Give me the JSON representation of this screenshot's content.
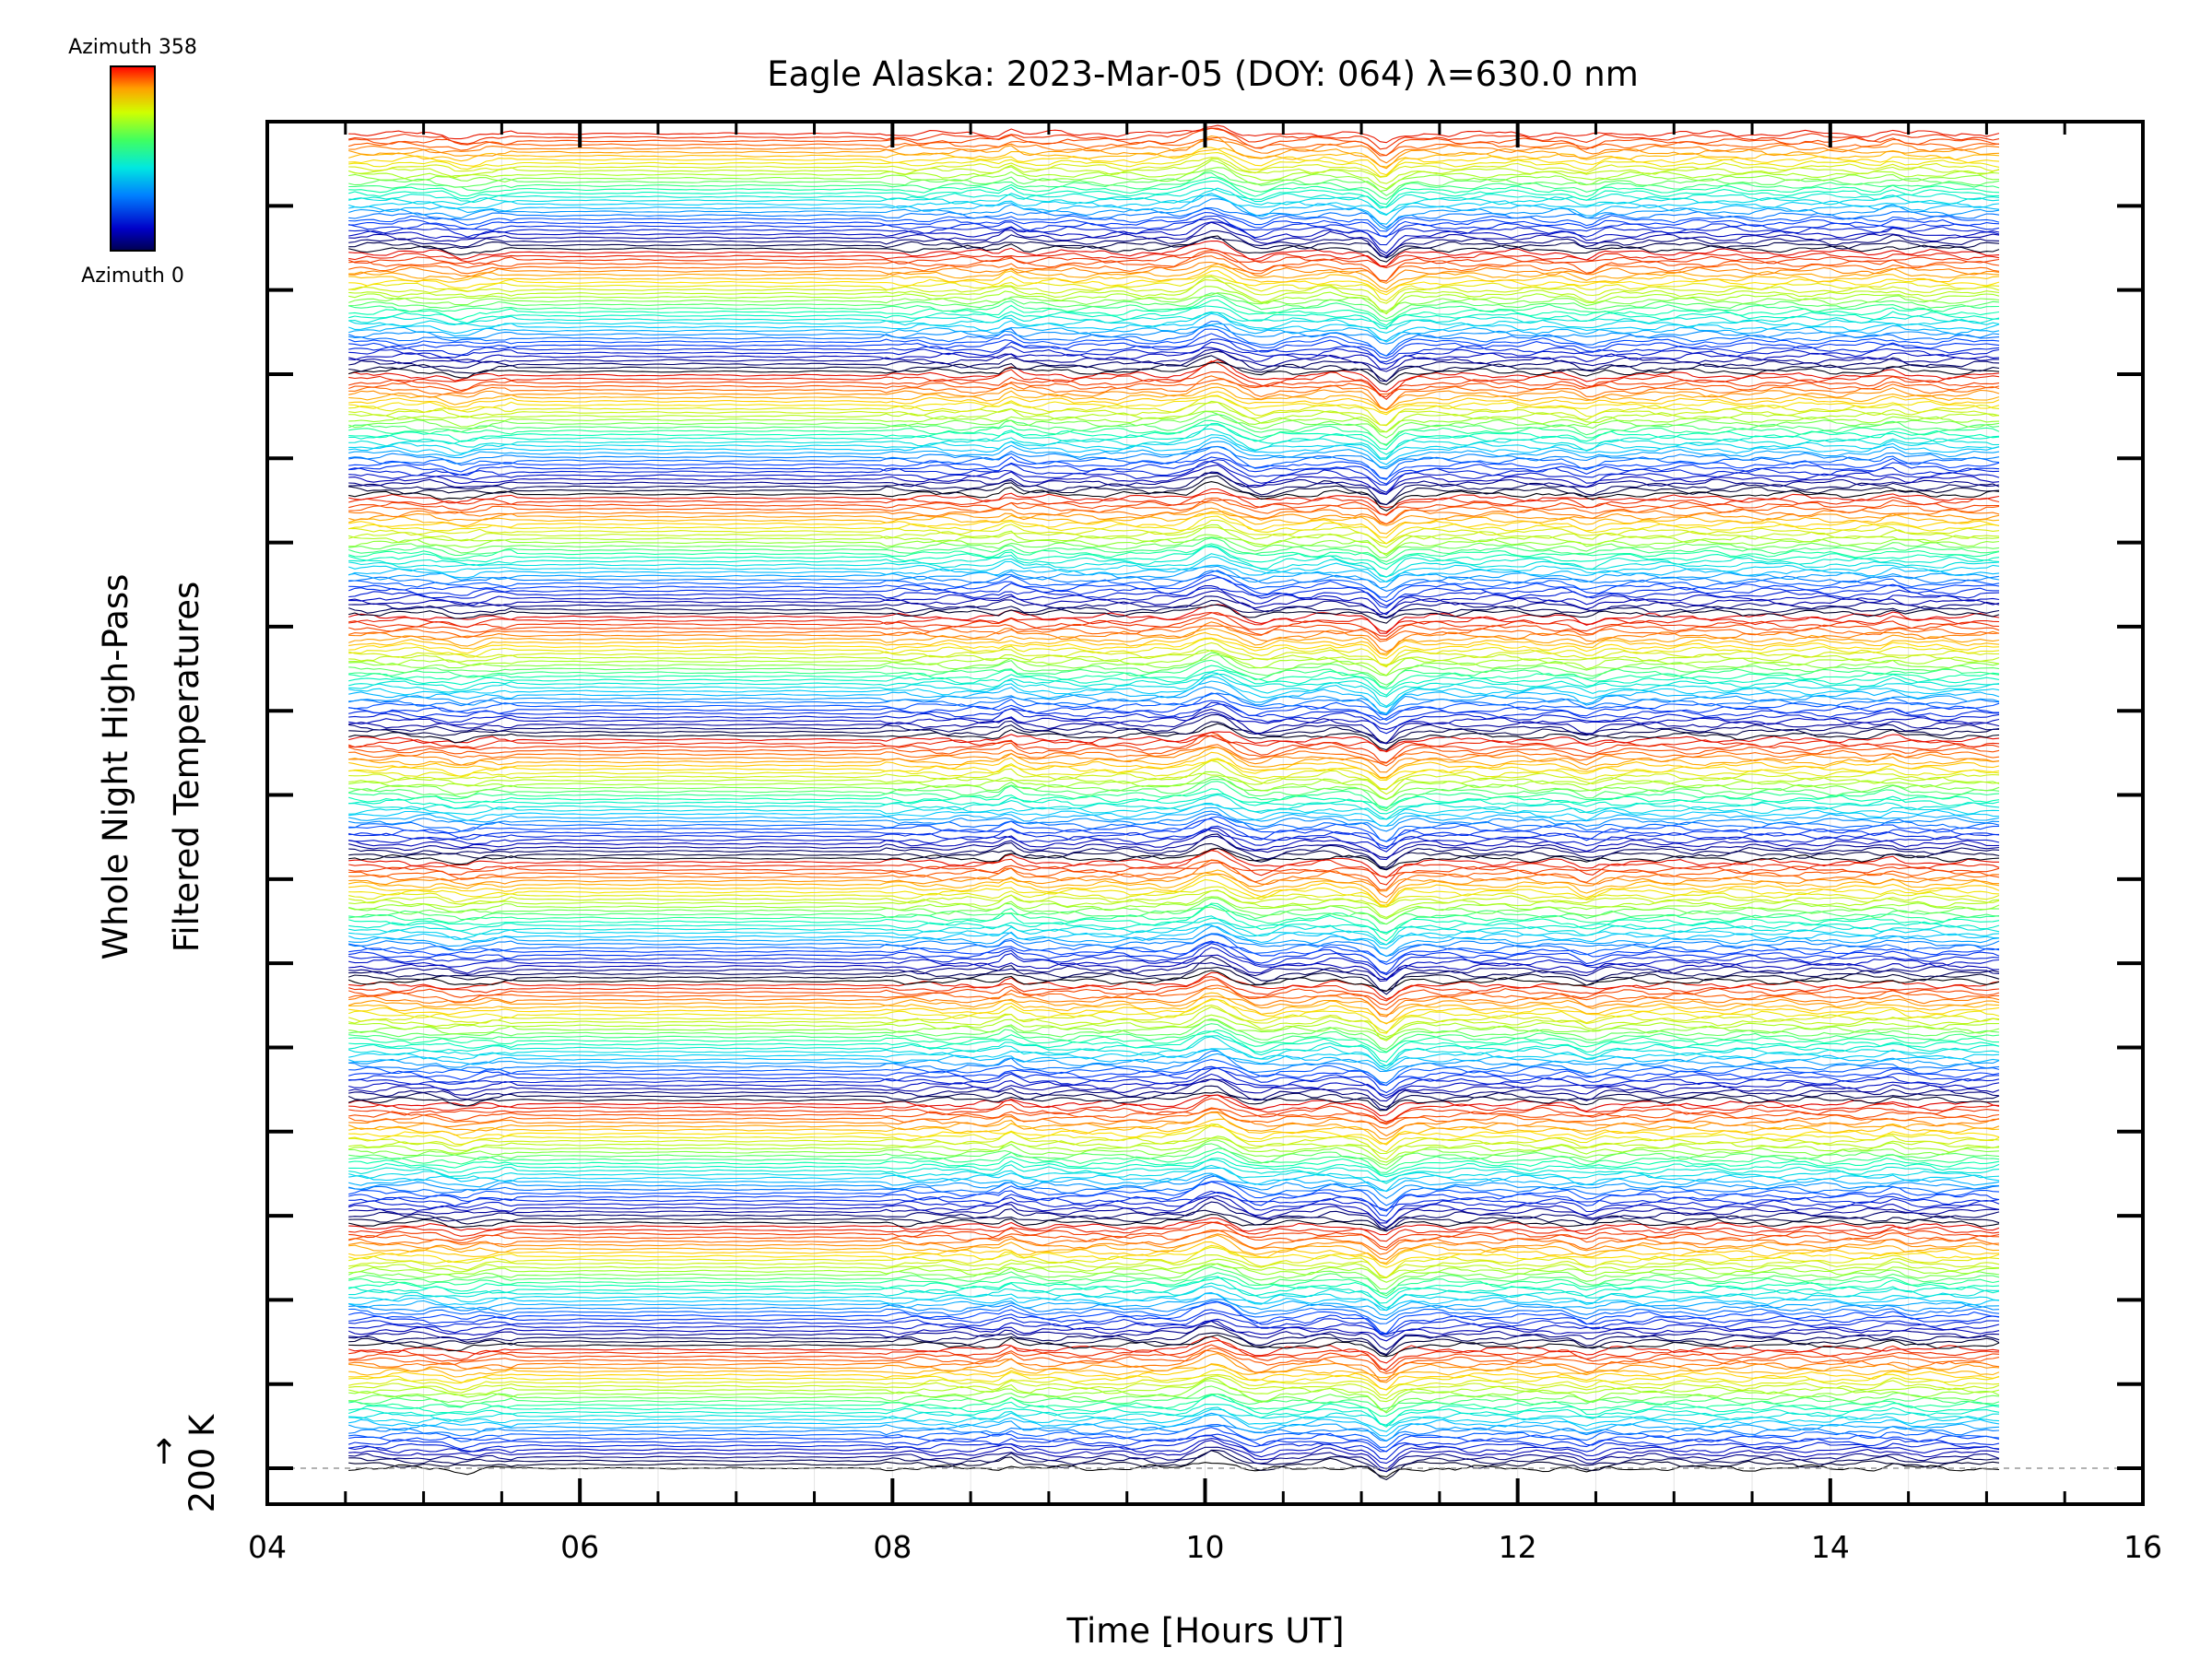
{
  "chart_data": {
    "type": "line",
    "title": "Eagle Alaska: 2023-Mar-05 (DOY: 064) λ=630.0 nm",
    "xlabel": "Time [Hours UT]",
    "ylabel_line1": "Whole Night High-Pass",
    "ylabel_line2": "Filtered Temperatures",
    "xlim": [
      4,
      16
    ],
    "x_ticks": [
      "04",
      "06",
      "08",
      "10",
      "12",
      "14",
      "16"
    ],
    "scale_bar_label": "200 K",
    "scale_bar_arrow": "↑",
    "colorbar": {
      "top_label": "Azimuth 358",
      "bottom_label": "Azimuth 0",
      "colormap": "rainbow"
    },
    "data_time_range": [
      4.52,
      15.08
    ],
    "n_traces": 360,
    "n_azimuth_cycles": 11,
    "trace_spacing_K": 20,
    "colors": [
      "#000000",
      "#0000b4",
      "#0040ff",
      "#00c8ff",
      "#00ffb0",
      "#a0ff20",
      "#ffe000",
      "#ff6000",
      "#e00000"
    ]
  }
}
